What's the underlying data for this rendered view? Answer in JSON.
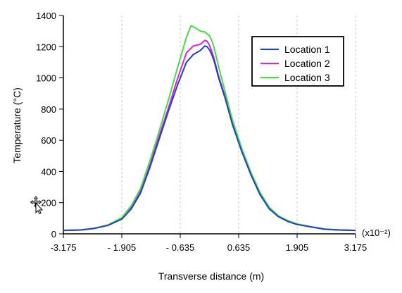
{
  "chart_data": {
    "type": "line",
    "title": "",
    "xlabel": "Transverse distance (m)",
    "ylabel": "Temperature (°C)",
    "x_multiplier_label": "(x10⁻²)",
    "xlim": [
      -3.175,
      3.175
    ],
    "ylim": [
      0,
      1400
    ],
    "x_ticks": [
      -3.175,
      -1.905,
      -0.635,
      0.635,
      1.905,
      3.175
    ],
    "x_tick_labels": [
      "-3.175",
      "- 1.905",
      "- 0.635",
      "0.635",
      "1.905",
      "3.175"
    ],
    "y_ticks": [
      0,
      200,
      400,
      600,
      800,
      1000,
      1200,
      1400
    ],
    "y_tick_labels": [
      "0",
      "200",
      "400",
      "600",
      "800",
      "1000",
      "1200",
      "1400"
    ],
    "grid": "vertical dashed",
    "legend_position": "top-right",
    "series": [
      {
        "name": "Location 1",
        "color": "#1f3fcf",
        "x": [
          -3.175,
          -2.8,
          -2.5,
          -2.2,
          -1.9,
          -1.7,
          -1.5,
          -1.3,
          -1.1,
          -0.9,
          -0.7,
          -0.5,
          -0.35,
          -0.2,
          -0.1,
          -0.05,
          0.0,
          0.05,
          0.1,
          0.2,
          0.35,
          0.5,
          0.7,
          0.9,
          1.1,
          1.3,
          1.5,
          1.7,
          1.9,
          2.2,
          2.5,
          2.8,
          3.175
        ],
        "y": [
          22,
          25,
          35,
          55,
          95,
          160,
          260,
          420,
          600,
          780,
          950,
          1100,
          1150,
          1175,
          1205,
          1200,
          1180,
          1150,
          1110,
          1000,
          860,
          700,
          530,
          380,
          250,
          160,
          110,
          80,
          60,
          45,
          30,
          25,
          22
        ]
      },
      {
        "name": "Location 2",
        "color": "#e020e0",
        "x": [
          -3.175,
          -2.8,
          -2.5,
          -2.2,
          -1.9,
          -1.7,
          -1.5,
          -1.3,
          -1.1,
          -0.9,
          -0.7,
          -0.5,
          -0.35,
          -0.2,
          -0.1,
          -0.05,
          0.0,
          0.05,
          0.1,
          0.2,
          0.35,
          0.5,
          0.7,
          0.9,
          1.1,
          1.3,
          1.5,
          1.7,
          1.9,
          2.2,
          2.5,
          2.8,
          3.175
        ],
        "y": [
          22,
          25,
          35,
          55,
          100,
          170,
          275,
          440,
          620,
          800,
          990,
          1160,
          1205,
          1215,
          1240,
          1235,
          1210,
          1170,
          1125,
          1010,
          870,
          710,
          535,
          385,
          255,
          165,
          112,
          82,
          62,
          45,
          30,
          25,
          22
        ]
      },
      {
        "name": "Location 3",
        "color": "#40e040",
        "x": [
          -3.175,
          -2.8,
          -2.5,
          -2.2,
          -1.9,
          -1.7,
          -1.5,
          -1.3,
          -1.1,
          -0.9,
          -0.7,
          -0.5,
          -0.4,
          -0.3,
          -0.2,
          -0.1,
          0.0,
          0.05,
          0.1,
          0.2,
          0.35,
          0.5,
          0.7,
          0.9,
          1.1,
          1.3,
          1.5,
          1.7,
          1.9,
          2.2,
          2.5,
          2.8,
          3.175
        ],
        "y": [
          22,
          25,
          36,
          58,
          105,
          180,
          290,
          460,
          650,
          850,
          1060,
          1260,
          1335,
          1320,
          1300,
          1295,
          1270,
          1240,
          1195,
          1070,
          900,
          730,
          550,
          395,
          265,
          170,
          115,
          85,
          64,
          46,
          31,
          26,
          22
        ]
      }
    ]
  },
  "cursor": {
    "icon": "move-cursor-icon"
  }
}
